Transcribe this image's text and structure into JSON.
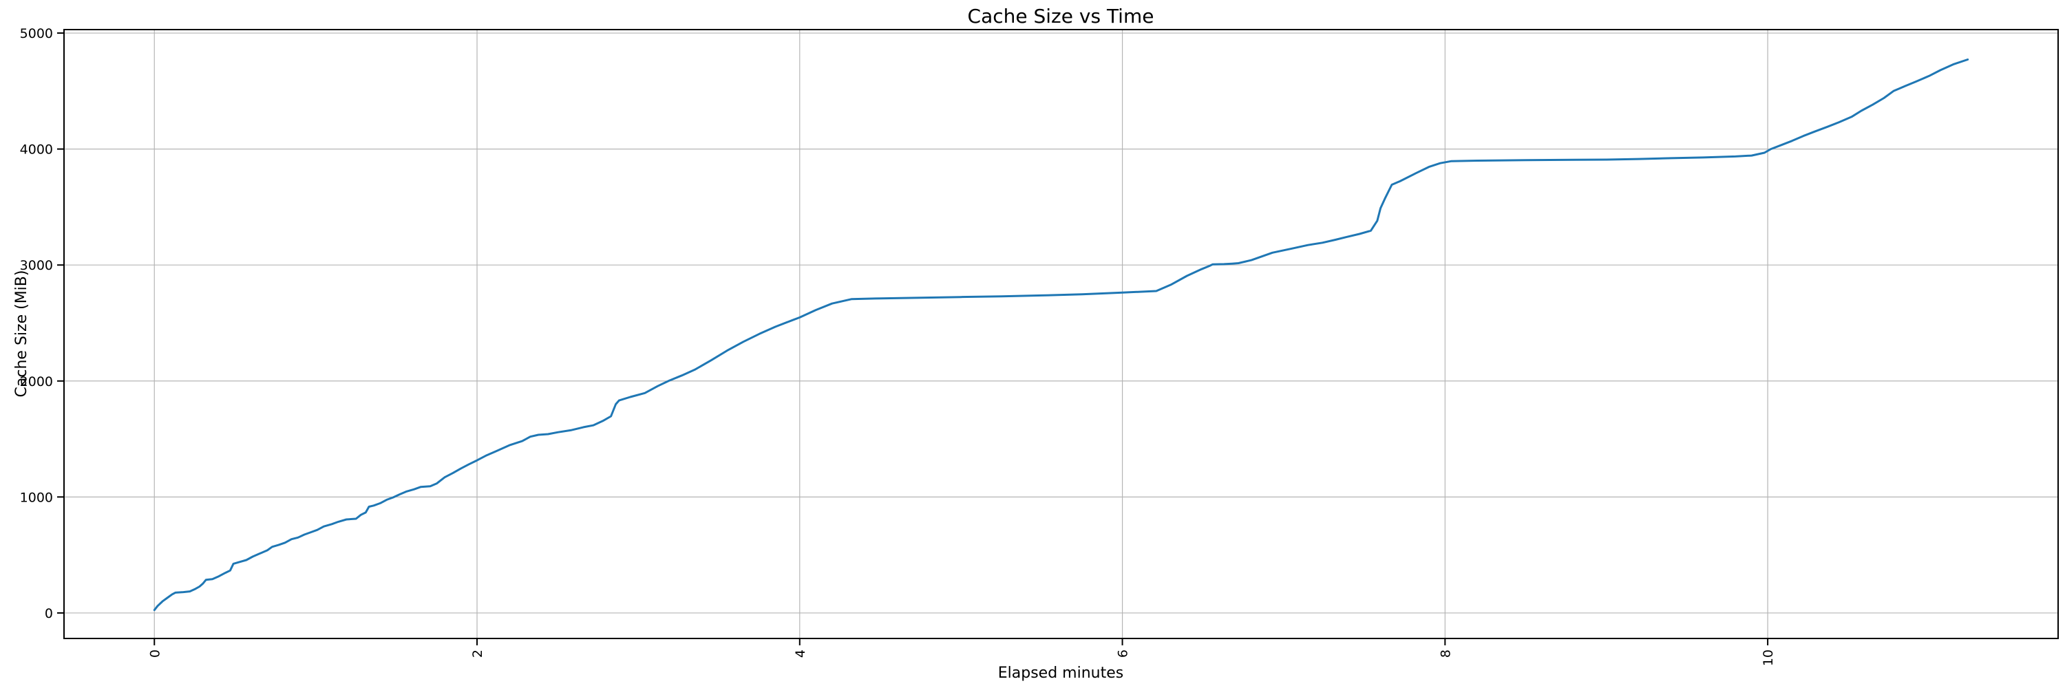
{
  "figure": {
    "title": "Cache Size vs Time",
    "xlabel": "Elapsed minutes",
    "ylabel": "Cache Size (MiB)"
  },
  "colors": {
    "line": "#1f77b4",
    "grid": "#b5b5b5",
    "spine": "#000000",
    "tick": "#000000",
    "background": "#ffffff"
  },
  "chart_data": {
    "type": "line",
    "title": "Cache Size vs Time",
    "xlabel": "Elapsed minutes",
    "ylabel": "Cache Size (MiB)",
    "grid": true,
    "legend_position": "none",
    "x_tick_rotation": 90,
    "xlim": [
      -0.56,
      11.8
    ],
    "ylim": [
      -220,
      5030
    ],
    "xticks": [
      0,
      2,
      4,
      6,
      8,
      10
    ],
    "yticks": [
      0,
      1000,
      2000,
      3000,
      4000,
      5000
    ],
    "series": [
      {
        "name": "cache-size",
        "color": "#1f77b4",
        "points": [
          [
            0.0,
            25
          ],
          [
            0.02,
            60
          ],
          [
            0.05,
            100
          ],
          [
            0.08,
            130
          ],
          [
            0.11,
            160
          ],
          [
            0.13,
            175
          ],
          [
            0.18,
            180
          ],
          [
            0.22,
            186
          ],
          [
            0.25,
            205
          ],
          [
            0.28,
            228
          ],
          [
            0.3,
            252
          ],
          [
            0.32,
            286
          ],
          [
            0.36,
            292
          ],
          [
            0.4,
            316
          ],
          [
            0.44,
            346
          ],
          [
            0.47,
            366
          ],
          [
            0.49,
            424
          ],
          [
            0.53,
            440
          ],
          [
            0.57,
            456
          ],
          [
            0.61,
            486
          ],
          [
            0.65,
            510
          ],
          [
            0.7,
            540
          ],
          [
            0.73,
            570
          ],
          [
            0.77,
            586
          ],
          [
            0.81,
            606
          ],
          [
            0.85,
            636
          ],
          [
            0.89,
            650
          ],
          [
            0.93,
            676
          ],
          [
            0.97,
            696
          ],
          [
            1.01,
            716
          ],
          [
            1.05,
            746
          ],
          [
            1.1,
            766
          ],
          [
            1.14,
            786
          ],
          [
            1.19,
            806
          ],
          [
            1.25,
            812
          ],
          [
            1.28,
            846
          ],
          [
            1.31,
            866
          ],
          [
            1.33,
            916
          ],
          [
            1.36,
            926
          ],
          [
            1.4,
            946
          ],
          [
            1.44,
            976
          ],
          [
            1.48,
            996
          ],
          [
            1.52,
            1022
          ],
          [
            1.56,
            1046
          ],
          [
            1.61,
            1066
          ],
          [
            1.65,
            1086
          ],
          [
            1.71,
            1092
          ],
          [
            1.75,
            1116
          ],
          [
            1.8,
            1170
          ],
          [
            1.85,
            1206
          ],
          [
            1.9,
            1246
          ],
          [
            1.95,
            1282
          ],
          [
            2.0,
            1316
          ],
          [
            2.06,
            1360
          ],
          [
            2.12,
            1396
          ],
          [
            2.2,
            1446
          ],
          [
            2.28,
            1482
          ],
          [
            2.33,
            1520
          ],
          [
            2.38,
            1536
          ],
          [
            2.44,
            1542
          ],
          [
            2.5,
            1558
          ],
          [
            2.58,
            1575
          ],
          [
            2.66,
            1602
          ],
          [
            2.72,
            1618
          ],
          [
            2.78,
            1656
          ],
          [
            2.83,
            1696
          ],
          [
            2.86,
            1800
          ],
          [
            2.88,
            1832
          ],
          [
            2.95,
            1862
          ],
          [
            3.04,
            1896
          ],
          [
            3.12,
            1956
          ],
          [
            3.19,
            2002
          ],
          [
            3.27,
            2048
          ],
          [
            3.35,
            2098
          ],
          [
            3.45,
            2178
          ],
          [
            3.55,
            2262
          ],
          [
            3.65,
            2338
          ],
          [
            3.75,
            2406
          ],
          [
            3.85,
            2468
          ],
          [
            3.95,
            2522
          ],
          [
            4.0,
            2548
          ],
          [
            4.1,
            2612
          ],
          [
            4.2,
            2668
          ],
          [
            4.32,
            2706
          ],
          [
            4.5,
            2712
          ],
          [
            4.75,
            2718
          ],
          [
            5.0,
            2724
          ],
          [
            5.25,
            2730
          ],
          [
            5.5,
            2738
          ],
          [
            5.75,
            2748
          ],
          [
            6.0,
            2762
          ],
          [
            6.21,
            2776
          ],
          [
            6.3,
            2830
          ],
          [
            6.4,
            2906
          ],
          [
            6.49,
            2964
          ],
          [
            6.54,
            2992
          ],
          [
            6.56,
            3006
          ],
          [
            6.63,
            3008
          ],
          [
            6.68,
            3012
          ],
          [
            6.72,
            3016
          ],
          [
            6.8,
            3042
          ],
          [
            6.93,
            3106
          ],
          [
            7.05,
            3142
          ],
          [
            7.15,
            3172
          ],
          [
            7.24,
            3192
          ],
          [
            7.32,
            3218
          ],
          [
            7.39,
            3242
          ],
          [
            7.47,
            3268
          ],
          [
            7.54,
            3296
          ],
          [
            7.58,
            3382
          ],
          [
            7.6,
            3490
          ],
          [
            7.63,
            3580
          ],
          [
            7.67,
            3692
          ],
          [
            7.72,
            3722
          ],
          [
            7.82,
            3792
          ],
          [
            7.9,
            3846
          ],
          [
            7.97,
            3878
          ],
          [
            8.04,
            3896
          ],
          [
            8.2,
            3900
          ],
          [
            8.5,
            3904
          ],
          [
            8.8,
            3907
          ],
          [
            9.0,
            3909
          ],
          [
            9.2,
            3914
          ],
          [
            9.4,
            3921
          ],
          [
            9.6,
            3927
          ],
          [
            9.8,
            3936
          ],
          [
            9.9,
            3944
          ],
          [
            9.98,
            3968
          ],
          [
            10.02,
            4000
          ],
          [
            10.08,
            4032
          ],
          [
            10.15,
            4070
          ],
          [
            10.22,
            4112
          ],
          [
            10.29,
            4150
          ],
          [
            10.37,
            4192
          ],
          [
            10.44,
            4230
          ],
          [
            10.52,
            4278
          ],
          [
            10.58,
            4330
          ],
          [
            10.65,
            4382
          ],
          [
            10.72,
            4440
          ],
          [
            10.78,
            4500
          ],
          [
            10.85,
            4542
          ],
          [
            10.92,
            4582
          ],
          [
            11.0,
            4630
          ],
          [
            11.07,
            4680
          ],
          [
            11.15,
            4730
          ],
          [
            11.24,
            4772
          ]
        ]
      }
    ]
  }
}
